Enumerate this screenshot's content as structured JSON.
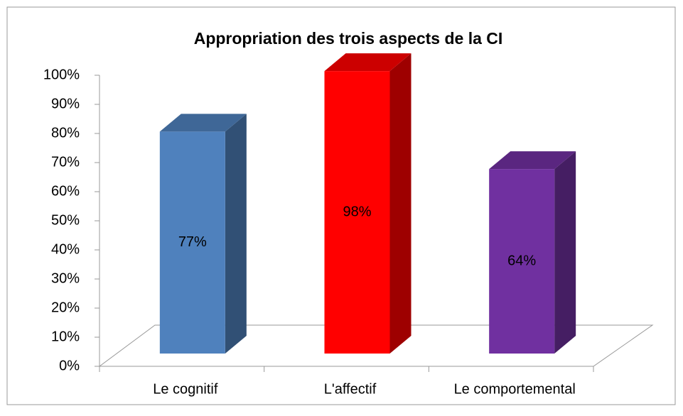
{
  "chart_data": {
    "type": "bar3d",
    "title": "Appropriation des trois aspects de la CI",
    "categories": [
      "Le cognitif",
      "L'affectif",
      "Le comportemental"
    ],
    "values": [
      77,
      98,
      64
    ],
    "value_labels": [
      "77%",
      "98%",
      "64%"
    ],
    "colors": [
      "#4f81bd",
      "#ff0000",
      "#7030a0"
    ],
    "ylim": [
      0,
      100
    ],
    "yticks": [
      {
        "value": 0,
        "label": "0%"
      },
      {
        "value": 10,
        "label": "10%"
      },
      {
        "value": 20,
        "label": "20%"
      },
      {
        "value": 30,
        "label": "30%"
      },
      {
        "value": 40,
        "label": "40%"
      },
      {
        "value": 50,
        "label": "50%"
      },
      {
        "value": 60,
        "label": "60%"
      },
      {
        "value": 70,
        "label": "70%"
      },
      {
        "value": 80,
        "label": "80%"
      },
      {
        "value": 90,
        "label": "90%"
      },
      {
        "value": 100,
        "label": "100%"
      }
    ]
  }
}
